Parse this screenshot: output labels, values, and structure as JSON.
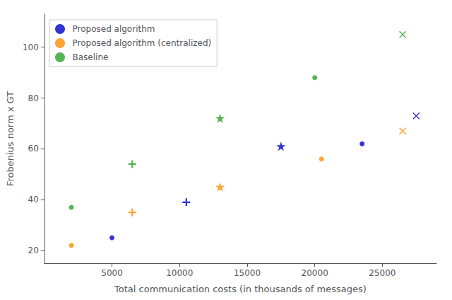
{
  "chart_data": {
    "type": "scatter",
    "title": "",
    "xlabel": "Total communication costs (in thousands of messages)",
    "ylabel": "Frobenius norm x GT",
    "series": [
      {
        "name": "Proposed algorithm",
        "color": "#0000cc",
        "x": [
          5000,
          10500,
          17500,
          23500,
          27500
        ],
        "values": [
          25,
          39,
          61,
          62,
          73
        ],
        "marker": [
          "circle",
          "plus",
          "star",
          "circle",
          "x"
        ]
      },
      {
        "name": "Proposed algorithm (centralized)",
        "color": "#ff8c00",
        "x": [
          2000,
          6500,
          13000,
          20500,
          26500
        ],
        "values": [
          22,
          35,
          45,
          56,
          67
        ],
        "marker": [
          "circle",
          "plus",
          "star",
          "circle",
          "x"
        ]
      },
      {
        "name": "Baseline",
        "color": "#2ca02c",
        "x": [
          2000,
          6500,
          13000,
          20000,
          26500
        ],
        "values": [
          37,
          54,
          72,
          88,
          105
        ],
        "marker": [
          "circle",
          "plus",
          "star",
          "circle",
          "x"
        ]
      }
    ],
    "xlim": [
      0,
      29000
    ],
    "ylim": [
      15,
      113
    ],
    "xticks": [
      5000,
      10000,
      15000,
      20000,
      25000
    ],
    "yticks": [
      20,
      40,
      60,
      80,
      100
    ],
    "grid": false,
    "legend": "upper left"
  }
}
